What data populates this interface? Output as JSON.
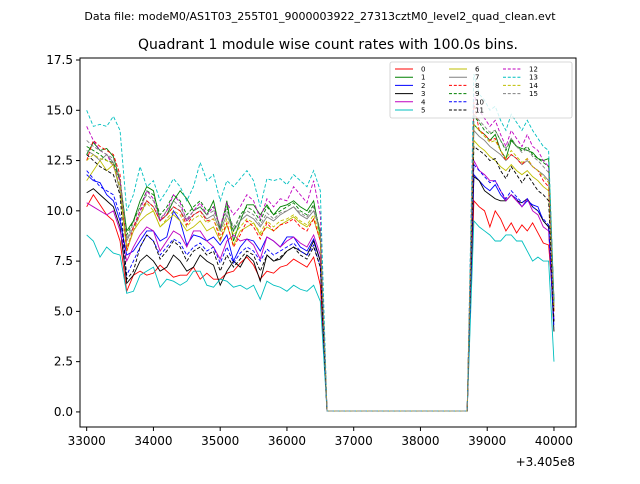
{
  "suptitle": "Data file: modeM0/AS1T03_255T01_9000003922_27313cztM0_level2_quad_clean.evt",
  "chart_data": {
    "type": "line",
    "title": "Quadrant 1 module wise count rates with 100.0s bins.",
    "xlabel": "",
    "ylabel": "",
    "x_offset_label": "+3.405e8",
    "xlim": [
      32900,
      40330
    ],
    "ylim": [
      -0.75,
      17.6
    ],
    "x_ticks": [
      33000,
      34000,
      35000,
      36000,
      37000,
      38000,
      39000,
      40000
    ],
    "y_ticks": [
      0.0,
      2.5,
      5.0,
      7.5,
      10.0,
      12.5,
      15.0,
      17.5
    ],
    "x_tick_labels": [
      "33000",
      "34000",
      "35000",
      "36000",
      "37000",
      "38000",
      "39000",
      "40000"
    ],
    "y_tick_labels": [
      "0.0",
      "2.5",
      "5.0",
      "7.5",
      "10.0",
      "12.5",
      "15.0",
      "17.5"
    ],
    "legend_position": "top-right",
    "grid": false,
    "series": [
      {
        "name": "0",
        "color": "#ff0000",
        "dash": "solid",
        "values": [
          10.2,
          10.8,
          10.3,
          9.8,
          9.5,
          8.5,
          6.0,
          6.8,
          7.0,
          6.8,
          6.9,
          7.3,
          7.0,
          6.7,
          6.8,
          6.8,
          7.2,
          6.6,
          6.9,
          6.6,
          6.6,
          6.9,
          7.0,
          7.4,
          7.7,
          7.3,
          6.6,
          7.0,
          6.9,
          7.2,
          7.3,
          7.6,
          7.4,
          7.2,
          7.7,
          6.3,
          0.05,
          0.05,
          10.5,
          10.2,
          10.0,
          9.2,
          10.0,
          9.6,
          9.0,
          9.4,
          8.9,
          9.3,
          9.0,
          9.4,
          8.9,
          8.4,
          8.3,
          5.0
        ]
      },
      {
        "name": "1",
        "color": "#008000",
        "dash": "solid",
        "values": [
          12.8,
          13.4,
          13.0,
          13.1,
          12.7,
          11.5,
          9.0,
          9.5,
          10.5,
          11.2,
          11.0,
          9.5,
          9.8,
          10.5,
          11.0,
          10.6,
          10.0,
          10.2,
          9.8,
          10.5,
          9.0,
          10.5,
          8.5,
          9.5,
          10.3,
          10.3,
          9.8,
          10.3,
          9.8,
          10.2,
          10.3,
          10.5,
          10.2,
          10.0,
          10.5,
          8.7,
          0.05,
          0.05,
          14.3,
          14.0,
          13.8,
          13.5,
          13.8,
          13.0,
          12.6,
          13.5,
          13.2,
          13.1,
          13.0,
          12.9,
          12.6,
          12.5,
          12.6,
          5.5
        ]
      },
      {
        "name": "2",
        "color": "#0000ff",
        "dash": "solid",
        "values": [
          11.8,
          11.5,
          11.4,
          10.8,
          10.5,
          9.5,
          7.8,
          8.0,
          8.5,
          9.0,
          9.0,
          8.5,
          8.7,
          10.0,
          9.5,
          8.3,
          8.8,
          8.7,
          8.5,
          8.7,
          8.3,
          8.8,
          7.5,
          8.2,
          8.6,
          8.5,
          8.0,
          8.7,
          8.5,
          8.2,
          8.7,
          8.7,
          8.2,
          8.0,
          8.6,
          7.5,
          0.05,
          0.05,
          11.8,
          11.5,
          11.2,
          11.0,
          11.3,
          10.8,
          10.5,
          10.8,
          10.6,
          10.2,
          10.5,
          10.3,
          10.2,
          9.5,
          9.2,
          4.5
        ]
      },
      {
        "name": "3",
        "color": "#000000",
        "dash": "solid",
        "values": [
          10.9,
          11.1,
          10.8,
          10.5,
          10.2,
          9.2,
          6.4,
          6.8,
          7.5,
          7.8,
          7.5,
          7.0,
          7.2,
          7.8,
          7.5,
          7.0,
          7.2,
          7.8,
          7.5,
          7.3,
          6.3,
          7.0,
          7.5,
          7.2,
          7.8,
          7.5,
          6.5,
          7.8,
          7.5,
          7.6,
          8.0,
          8.2,
          8.0,
          7.8,
          8.5,
          7.5,
          0.05,
          0.05,
          11.7,
          11.5,
          11.0,
          10.8,
          10.6,
          10.5,
          10.5,
          10.8,
          10.5,
          10.4,
          10.6,
          10.2,
          10.0,
          9.5,
          9.2,
          4.0
        ]
      },
      {
        "name": "4",
        "color": "#bf00bf",
        "dash": "solid",
        "values": [
          10.4,
          10.2,
          10.0,
          9.8,
          10.0,
          9.0,
          7.5,
          8.2,
          8.8,
          9.2,
          9.0,
          8.0,
          8.5,
          9.0,
          8.8,
          8.2,
          9.0,
          9.0,
          8.5,
          8.2,
          7.6,
          8.5,
          8.8,
          8.5,
          8.6,
          8.3,
          7.6,
          8.7,
          8.5,
          8.2,
          8.5,
          8.7,
          8.4,
          8.2,
          8.8,
          7.8,
          0.05,
          0.05,
          12.5,
          12.0,
          11.8,
          11.5,
          11.5,
          11.0,
          10.5,
          10.8,
          10.5,
          10.2,
          10.6,
          10.0,
          9.8,
          9.2,
          9.0,
          4.5
        ]
      },
      {
        "name": "5",
        "color": "#00bfbf",
        "dash": "solid",
        "values": [
          8.8,
          8.5,
          7.7,
          8.2,
          7.9,
          7.8,
          5.9,
          6.0,
          6.8,
          7.0,
          7.2,
          6.2,
          6.6,
          6.5,
          6.3,
          6.5,
          7.0,
          7.0,
          6.3,
          6.2,
          6.6,
          6.5,
          6.2,
          6.3,
          6.1,
          6.3,
          5.6,
          6.5,
          6.3,
          6.2,
          6.0,
          6.3,
          6.1,
          6.0,
          6.3,
          5.5,
          0.05,
          0.05,
          9.5,
          9.2,
          9.0,
          8.8,
          8.5,
          8.5,
          8.8,
          8.8,
          8.5,
          8.5,
          8.0,
          7.5,
          7.7,
          7.5,
          7.5,
          2.5
        ]
      },
      {
        "name": "6",
        "color": "#bfbf00",
        "dash": "solid",
        "values": [
          11.5,
          12.0,
          12.5,
          12.0,
          12.3,
          11.0,
          8.0,
          9.0,
          9.5,
          9.8,
          10.0,
          9.2,
          9.5,
          9.8,
          9.5,
          9.0,
          9.2,
          9.5,
          9.0,
          9.2,
          8.5,
          9.3,
          8.3,
          9.0,
          9.2,
          9.4,
          8.8,
          9.2,
          9.0,
          9.3,
          9.5,
          9.7,
          9.4,
          9.2,
          9.6,
          8.5,
          0.05,
          0.05,
          13.5,
          13.2,
          13.0,
          12.7,
          12.5,
          12.2,
          12.0,
          12.3,
          12.0,
          11.8,
          12.0,
          11.7,
          11.5,
          11.2,
          11.0,
          5.0
        ]
      },
      {
        "name": "7",
        "color": "#808080",
        "dash": "solid",
        "values": [
          13.0,
          12.8,
          12.5,
          12.8,
          12.4,
          11.0,
          8.5,
          9.2,
          9.8,
          10.5,
          10.2,
          9.5,
          9.8,
          10.2,
          10.0,
          9.5,
          9.8,
          10.0,
          9.6,
          9.8,
          9.0,
          9.8,
          9.0,
          9.5,
          9.8,
          9.6,
          9.2,
          9.7,
          9.5,
          9.8,
          10.0,
          10.2,
          9.8,
          9.6,
          10.0,
          9.0,
          0.05,
          0.05,
          14.0,
          13.7,
          13.5,
          13.2,
          13.0,
          12.8,
          12.5,
          12.8,
          12.6,
          12.3,
          12.5,
          12.2,
          12.0,
          11.8,
          11.5,
          5.2
        ]
      },
      {
        "name": "8",
        "color": "#ff0000",
        "dash": "dashed",
        "values": [
          12.5,
          13.5,
          13.2,
          13.0,
          12.8,
          11.8,
          8.0,
          9.2,
          10.0,
          10.5,
          10.2,
          9.5,
          9.8,
          10.2,
          10.0,
          9.3,
          9.8,
          10.0,
          9.5,
          9.6,
          8.6,
          9.4,
          8.2,
          8.8,
          9.5,
          9.2,
          8.6,
          9.4,
          9.0,
          9.3,
          9.4,
          9.6,
          9.2,
          9.0,
          9.6,
          8.5,
          0.05,
          0.05,
          15.4,
          14.0,
          13.8,
          13.5,
          13.6,
          13.0,
          12.5,
          12.8,
          12.6,
          12.3,
          12.6,
          12.2,
          12.0,
          11.5,
          11.2,
          5.0
        ]
      },
      {
        "name": "9",
        "color": "#008000",
        "dash": "dashed",
        "values": [
          13.2,
          13.0,
          12.8,
          12.5,
          12.4,
          11.5,
          8.8,
          9.5,
          10.2,
          11.0,
          10.8,
          9.8,
          10.2,
          10.8,
          10.5,
          9.8,
          10.2,
          10.5,
          10.0,
          10.2,
          9.2,
          10.2,
          9.0,
          9.8,
          10.2,
          10.0,
          9.5,
          10.2,
          9.8,
          10.0,
          10.2,
          10.4,
          10.0,
          9.8,
          10.3,
          9.0,
          0.05,
          0.05,
          14.7,
          14.4,
          14.0,
          13.8,
          14.0,
          13.5,
          13.0,
          13.6,
          13.2,
          13.0,
          13.2,
          12.8,
          12.6,
          12.4,
          12.2,
          5.5
        ]
      },
      {
        "name": "10",
        "color": "#0000ff",
        "dash": "dashed",
        "values": [
          12.0,
          11.6,
          11.2,
          11.0,
          10.8,
          9.8,
          6.8,
          7.5,
          8.2,
          8.8,
          8.5,
          7.8,
          8.2,
          8.6,
          8.4,
          7.8,
          8.2,
          8.4,
          8.0,
          8.2,
          7.4,
          8.2,
          7.4,
          7.9,
          8.2,
          8.0,
          7.5,
          8.1,
          7.8,
          8.0,
          8.2,
          8.4,
          8.0,
          7.8,
          8.3,
          7.2,
          0.05,
          0.05,
          12.3,
          12.0,
          11.7,
          11.4,
          11.5,
          11.0,
          10.6,
          11.0,
          10.7,
          10.4,
          10.6,
          10.2,
          10.0,
          9.6,
          9.3,
          4.2
        ]
      },
      {
        "name": "11",
        "color": "#000000",
        "dash": "dashed",
        "values": [
          12.8,
          12.5,
          12.2,
          12.0,
          11.8,
          10.8,
          6.6,
          7.0,
          8.2,
          8.8,
          8.5,
          7.6,
          8.0,
          8.5,
          8.2,
          7.5,
          8.0,
          8.2,
          7.8,
          8.0,
          7.0,
          7.8,
          7.2,
          7.6,
          8.0,
          7.8,
          7.0,
          7.8,
          7.5,
          7.7,
          8.0,
          8.2,
          7.8,
          7.6,
          8.2,
          7.2,
          0.05,
          0.05,
          13.2,
          13.0,
          12.8,
          12.5,
          12.6,
          12.0,
          11.6,
          12.2,
          11.8,
          11.4,
          11.8,
          11.4,
          11.0,
          10.8,
          10.5,
          4.5
        ]
      },
      {
        "name": "12",
        "color": "#bf00bf",
        "dash": "dashed",
        "values": [
          14.2,
          13.5,
          13.0,
          12.8,
          12.2,
          11.5,
          8.2,
          9.0,
          10.0,
          11.0,
          10.6,
          9.5,
          10.0,
          10.8,
          10.4,
          9.5,
          10.0,
          10.4,
          9.8,
          10.2,
          9.2,
          10.4,
          9.8,
          10.2,
          10.8,
          10.5,
          9.6,
          10.6,
          10.2,
          10.6,
          10.5,
          11.2,
          10.8,
          10.4,
          11.5,
          9.8,
          0.05,
          0.05,
          15.8,
          15.0,
          14.6,
          14.2,
          14.5,
          13.8,
          13.2,
          14.0,
          13.6,
          13.2,
          13.8,
          13.2,
          13.0,
          12.5,
          12.2,
          5.5
        ]
      },
      {
        "name": "13",
        "color": "#00bfbf",
        "dash": "dashed",
        "values": [
          15.0,
          14.2,
          14.3,
          14.2,
          14.7,
          14.0,
          10.0,
          10.8,
          12.2,
          11.2,
          11.5,
          10.5,
          11.0,
          11.6,
          11.2,
          10.5,
          11.2,
          12.4,
          11.5,
          11.8,
          10.5,
          11.5,
          11.2,
          11.6,
          12.0,
          11.5,
          10.2,
          11.6,
          11.5,
          11.6,
          11.3,
          11.8,
          11.5,
          11.2,
          12.0,
          11.0,
          0.05,
          0.05,
          16.8,
          15.8,
          15.5,
          15.0,
          15.2,
          14.5,
          14.0,
          14.8,
          14.4,
          14.0,
          14.5,
          14.0,
          13.6,
          13.2,
          13.0,
          5.5
        ]
      },
      {
        "name": "14",
        "color": "#bfbf00",
        "dash": "dashed",
        "values": [
          12.5,
          12.8,
          12.6,
          12.5,
          12.3,
          11.2,
          8.2,
          9.0,
          9.8,
          10.4,
          10.0,
          9.2,
          9.6,
          10.0,
          9.8,
          9.2,
          9.6,
          9.8,
          9.4,
          9.6,
          8.8,
          9.6,
          8.8,
          9.2,
          9.6,
          9.4,
          8.9,
          9.5,
          9.2,
          9.5,
          9.6,
          9.8,
          9.5,
          9.3,
          9.8,
          8.7,
          0.05,
          0.05,
          14.3,
          14.0,
          13.7,
          13.4,
          13.5,
          13.0,
          12.6,
          13.0,
          12.7,
          12.4,
          12.6,
          12.2,
          12.0,
          11.7,
          11.4,
          5.2
        ]
      },
      {
        "name": "15",
        "color": "#808080",
        "dash": "dashed",
        "values": [
          13.5,
          13.2,
          13.0,
          12.8,
          12.6,
          11.6,
          8.6,
          9.4,
          10.2,
          10.8,
          10.5,
          9.6,
          10.0,
          10.5,
          10.2,
          9.6,
          10.0,
          10.2,
          9.8,
          10.0,
          9.2,
          10.0,
          9.2,
          9.7,
          10.0,
          9.8,
          9.3,
          9.9,
          9.6,
          9.9,
          10.0,
          10.2,
          9.9,
          9.7,
          10.2,
          9.0,
          0.05,
          0.05,
          14.8,
          14.5,
          14.2,
          13.9,
          14.0,
          13.5,
          13.1,
          13.6,
          13.2,
          12.9,
          13.1,
          12.7,
          12.5,
          12.2,
          11.9,
          5.4
        ]
      }
    ]
  }
}
